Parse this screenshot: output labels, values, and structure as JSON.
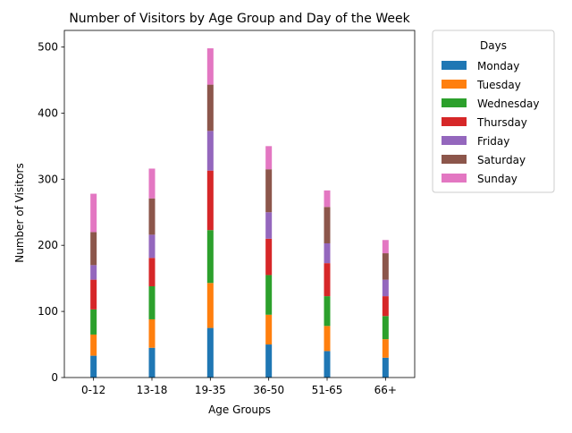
{
  "chart_data": {
    "type": "bar",
    "stacked": true,
    "title": "Number of Visitors by Age Group and Day of the Week",
    "xlabel": "Age Groups",
    "ylabel": "Number of Visitors",
    "ylim": [
      0,
      525
    ],
    "yticks": [
      0,
      100,
      200,
      300,
      400,
      500
    ],
    "grid": false,
    "legend": {
      "title": "Days",
      "placement": "outside-top-right"
    },
    "categories": [
      "0-12",
      "13-18",
      "19-35",
      "36-50",
      "51-65",
      "66+"
    ],
    "series": [
      {
        "name": "Monday",
        "color": "#1f77b4",
        "values": [
          33,
          45,
          75,
          50,
          40,
          30
        ]
      },
      {
        "name": "Tuesday",
        "color": "#ff7f0e",
        "values": [
          32,
          43,
          68,
          45,
          38,
          28
        ]
      },
      {
        "name": "Wednesday",
        "color": "#2ca02c",
        "values": [
          38,
          50,
          80,
          60,
          45,
          35
        ]
      },
      {
        "name": "Thursday",
        "color": "#d62728",
        "values": [
          45,
          43,
          90,
          55,
          50,
          30
        ]
      },
      {
        "name": "Friday",
        "color": "#9467bd",
        "values": [
          22,
          35,
          60,
          40,
          30,
          25
        ]
      },
      {
        "name": "Saturday",
        "color": "#8c564b",
        "values": [
          50,
          55,
          70,
          65,
          55,
          40
        ]
      },
      {
        "name": "Sunday",
        "color": "#e377c2",
        "values": [
          58,
          45,
          55,
          35,
          25,
          20
        ]
      }
    ]
  }
}
